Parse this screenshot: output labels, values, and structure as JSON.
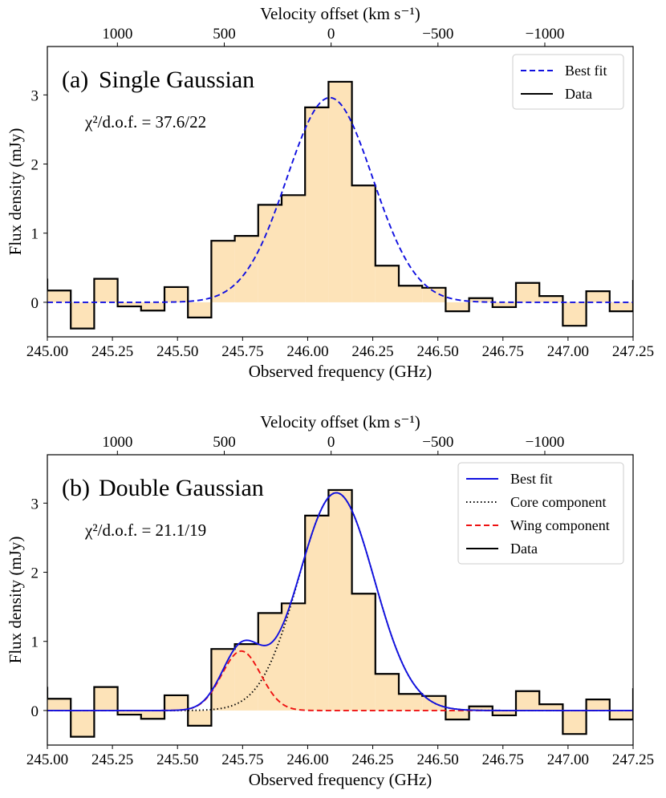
{
  "chart_data": [
    {
      "type": "step",
      "panel_label": "(a)",
      "title": "Single Gaussian",
      "annotation": "χ²/d.o.f. = 37.6/22",
      "xlabel": "Observed frequency (GHz)",
      "ylabel": "Flux density (mJy)",
      "top_xlabel": "Velocity offset (km s⁻¹)",
      "xlim": [
        245.0,
        247.25
      ],
      "ylim": [
        -0.5,
        3.7
      ],
      "x_ticks": [
        245.0,
        245.25,
        245.5,
        245.75,
        246.0,
        246.25,
        246.5,
        246.75,
        247.0,
        247.25
      ],
      "x_tick_labels": [
        "245.00",
        "245.25",
        "245.50",
        "245.75",
        "246.00",
        "246.25",
        "246.50",
        "246.75",
        "247.00",
        "247.25"
      ],
      "y_ticks": [
        0,
        1,
        2,
        3
      ],
      "y_tick_labels": [
        "0",
        "1",
        "2",
        "3"
      ],
      "top_ticks": [
        1000,
        500,
        0,
        -500,
        -1000
      ],
      "top_tick_labels": [
        "1000",
        "500",
        "0",
        "−500",
        "−1000"
      ],
      "ref_freq_ghz": 246.09,
      "legend_position": "top-right",
      "legend": [
        {
          "label": "Best fit",
          "style": "dashed",
          "color": "#1010e0"
        },
        {
          "label": "Data",
          "style": "solid",
          "color": "#000000"
        }
      ],
      "data": {
        "name": "Data",
        "bin_edges": [
          245.0,
          245.09,
          245.18,
          245.27,
          245.36,
          245.45,
          245.54,
          245.63,
          245.72,
          245.81,
          245.9,
          245.99,
          246.08,
          246.17,
          246.26,
          246.35,
          246.44,
          246.53,
          246.62,
          246.71,
          246.8,
          246.89,
          246.98,
          247.07,
          247.16,
          247.25
        ],
        "values": [
          0.17,
          -0.38,
          0.34,
          -0.06,
          -0.12,
          0.22,
          -0.22,
          0.89,
          0.96,
          1.41,
          1.55,
          2.82,
          3.19,
          1.69,
          0.53,
          0.24,
          0.21,
          -0.13,
          0.06,
          -0.07,
          0.28,
          0.09,
          -0.34,
          0.16,
          -0.13
        ],
        "extra_left_value": 0.33,
        "extra_right_value": 0.31,
        "fill_color": "#fde3b8",
        "line_color": "#000000"
      },
      "fits": [
        {
          "name": "Best fit",
          "color": "#1010e0",
          "style": "dashed",
          "components": [
            {
              "amplitude": 2.96,
              "center": 246.085,
              "sigma": 0.165
            }
          ]
        }
      ]
    },
    {
      "type": "step",
      "panel_label": "(b)",
      "title": "Double Gaussian",
      "annotation": "χ²/d.o.f. = 21.1/19",
      "xlabel": "Observed frequency (GHz)",
      "ylabel": "Flux density (mJy)",
      "top_xlabel": "Velocity offset (km s⁻¹)",
      "xlim": [
        245.0,
        247.25
      ],
      "ylim": [
        -0.5,
        3.7
      ],
      "x_ticks": [
        245.0,
        245.25,
        245.5,
        245.75,
        246.0,
        246.25,
        246.5,
        246.75,
        247.0,
        247.25
      ],
      "x_tick_labels": [
        "245.00",
        "245.25",
        "245.50",
        "245.75",
        "246.00",
        "246.25",
        "246.50",
        "246.75",
        "247.00",
        "247.25"
      ],
      "y_ticks": [
        0,
        1,
        2,
        3
      ],
      "y_tick_labels": [
        "0",
        "1",
        "2",
        "3"
      ],
      "top_ticks": [
        1000,
        500,
        0,
        -500,
        -1000
      ],
      "top_tick_labels": [
        "1000",
        "500",
        "0",
        "−500",
        "−1000"
      ],
      "ref_freq_ghz": 246.09,
      "legend_position": "top-right",
      "legend": [
        {
          "label": "Best fit",
          "style": "solid",
          "color": "#1010e0"
        },
        {
          "label": "Core component",
          "style": "dotted",
          "color": "#000000"
        },
        {
          "label": "Wing component",
          "style": "dashed",
          "color": "#ee1111"
        },
        {
          "label": "Data",
          "style": "solid",
          "color": "#000000"
        }
      ],
      "data": {
        "name": "Data",
        "bin_edges": [
          245.0,
          245.09,
          245.18,
          245.27,
          245.36,
          245.45,
          245.54,
          245.63,
          245.72,
          245.81,
          245.9,
          245.99,
          246.08,
          246.17,
          246.26,
          246.35,
          246.44,
          246.53,
          246.62,
          246.71,
          246.8,
          246.89,
          246.98,
          247.07,
          247.16,
          247.25
        ],
        "values": [
          0.17,
          -0.38,
          0.34,
          -0.06,
          -0.12,
          0.22,
          -0.22,
          0.89,
          0.96,
          1.41,
          1.55,
          2.82,
          3.19,
          1.69,
          0.53,
          0.24,
          0.21,
          -0.13,
          0.06,
          -0.07,
          0.28,
          0.09,
          -0.34,
          0.16,
          -0.13
        ],
        "extra_left_value": 0.33,
        "extra_right_value": 0.31,
        "fill_color": "#fde3b8",
        "line_color": "#000000"
      },
      "fits": [
        {
          "name": "Core component",
          "color": "#000000",
          "style": "dotted",
          "components": [
            {
              "amplitude": 3.15,
              "center": 246.11,
              "sigma": 0.145
            }
          ]
        },
        {
          "name": "Wing component",
          "color": "#ee1111",
          "style": "dashed",
          "components": [
            {
              "amplitude": 0.86,
              "center": 245.745,
              "sigma": 0.075
            }
          ]
        },
        {
          "name": "Best fit",
          "color": "#1010e0",
          "style": "solid",
          "components": [
            {
              "amplitude": 3.15,
              "center": 246.11,
              "sigma": 0.145
            },
            {
              "amplitude": 0.86,
              "center": 245.745,
              "sigma": 0.075
            }
          ]
        }
      ]
    }
  ]
}
